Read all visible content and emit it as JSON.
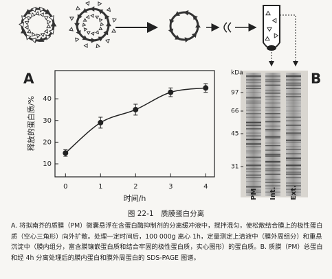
{
  "chart_data": {
    "type": "line",
    "panel_label": "A",
    "xlabel": "时间/h",
    "ylabel": "释放的蛋白质/%",
    "x": [
      0,
      1,
      2,
      3,
      4
    ],
    "series": [
      {
        "values": [
          15,
          29,
          35,
          43,
          45
        ],
        "errors": [
          1.5,
          2.5,
          2.5,
          2,
          2
        ],
        "color": "#222222"
      }
    ],
    "xlim": [
      -0.3,
      4.25
    ],
    "ylim": [
      4,
      53
    ],
    "xticks": [
      0,
      1,
      2,
      3,
      4
    ],
    "yticks": [
      10,
      20,
      30,
      40
    ]
  },
  "gel": {
    "panel_label": "B",
    "unit": "kDa",
    "markers": [
      97,
      66,
      45,
      31
    ],
    "lanes": [
      "PM",
      "Int.",
      "Ext."
    ]
  },
  "caption": {
    "title": "图 22-1　质膜蛋白分离",
    "text": "A. 将拟南芥的质膜（PM）微囊悬浮在含蛋白酶抑制剂的分离缓冲液中，搅拌混匀，使松散结合膜上的极性蛋白质（空心三角形）向外扩散。处理一定时间后，100 000g 离心 1h，定量测定上清液中（膜外周组分）和重悬沉淀中（膜内组分，富含膜镶嵌蛋白质和结合牢固的极性蛋白质，实心图形）的蛋白质。B. 质膜（PM）总蛋白和经 4h 分离处理后的膜内蛋白和膜外周蛋白的 SDS-PAGE 图谱。"
  }
}
